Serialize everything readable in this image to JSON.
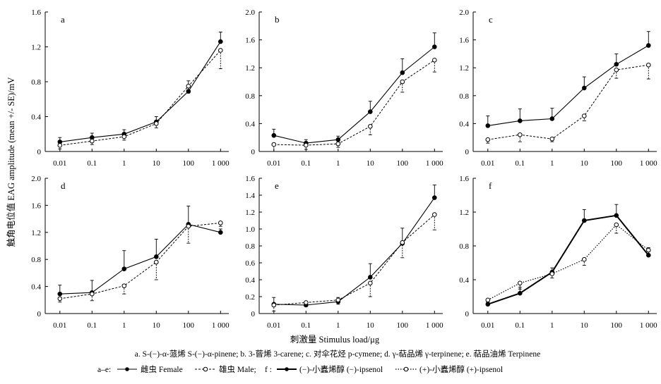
{
  "figure": {
    "ylabel": "触角电位值 EAG amplitude (mean +/- SE)/mV",
    "xlabel": "刺激量 Stimulus load/μg",
    "caption_line1": "a. S-(−)-α-蒎烯 S-(−)-α-pinene; b. 3-蒈烯 3-carene; c. 对伞花烃 p-cymene; d. γ-萜品烯 γ-terpinene; e. 萜品油烯 Terpinene",
    "legend": {
      "ae_prefix": "a–e:",
      "female": "雌虫 Female",
      "male": "雄虫 Male;",
      "f_prefix": "f :",
      "minus_ipsenol": "(−)-小蠹烯醇 (−)-ipsenol",
      "plus_ipsenol": "(+)-小蠹烯醇 (+)-ipsenol"
    }
  },
  "chart_data": [
    {
      "type": "line",
      "panel": "a",
      "categories": [
        "0.01",
        "0.1",
        "1",
        "10",
        "100",
        "1 000"
      ],
      "ylim": [
        0,
        1.6
      ],
      "yticks": [
        "0",
        "0.4",
        "0.8",
        "1.2",
        "1.6"
      ],
      "series": [
        {
          "name": "雌虫 Female",
          "style": "solid",
          "values": [
            0.11,
            0.16,
            0.2,
            0.34,
            0.69,
            1.26
          ],
          "errors": [
            0.05,
            0.05,
            0.05,
            0.06,
            0.12,
            0.11
          ]
        },
        {
          "name": "雄虫 Male",
          "style": "dashed",
          "values": [
            0.07,
            0.12,
            0.17,
            0.32,
            0.75,
            1.16
          ],
          "errors": [
            0.04,
            0.04,
            0.04,
            0.05,
            0.08,
            0.21
          ]
        }
      ]
    },
    {
      "type": "line",
      "panel": "b",
      "categories": [
        "0.01",
        "0.1",
        "1",
        "10",
        "100",
        "1 000"
      ],
      "ylim": [
        0,
        2.0
      ],
      "yticks": [
        "0",
        "0.4",
        "0.8",
        "1.2",
        "1.6",
        "2.0"
      ],
      "series": [
        {
          "name": "雌虫 Female",
          "style": "solid",
          "values": [
            0.23,
            0.12,
            0.17,
            0.57,
            1.13,
            1.5
          ],
          "errors": [
            0.09,
            0.05,
            0.05,
            0.15,
            0.2,
            0.2
          ]
        },
        {
          "name": "雄虫 Male",
          "style": "dashed",
          "values": [
            0.1,
            0.09,
            0.11,
            0.36,
            1.0,
            1.31
          ],
          "errors": [
            0.1,
            0.06,
            0.05,
            0.12,
            0.15,
            0.17
          ]
        }
      ]
    },
    {
      "type": "line",
      "panel": "c",
      "categories": [
        "0.01",
        "0.1",
        "1",
        "10",
        "100",
        "1 000"
      ],
      "ylim": [
        0,
        2.0
      ],
      "yticks": [
        "0",
        "0.4",
        "0.8",
        "1.2",
        "1.6",
        "2.0"
      ],
      "series": [
        {
          "name": "雌虫 Female",
          "style": "solid",
          "values": [
            0.37,
            0.44,
            0.47,
            0.91,
            1.25,
            1.52
          ],
          "errors": [
            0.14,
            0.17,
            0.15,
            0.16,
            0.15,
            0.2
          ]
        },
        {
          "name": "雄虫 Male",
          "style": "dashed",
          "values": [
            0.17,
            0.24,
            0.18,
            0.51,
            1.17,
            1.24
          ],
          "errors": [
            0.05,
            0.1,
            0.04,
            0.07,
            0.12,
            0.2
          ]
        }
      ]
    },
    {
      "type": "line",
      "panel": "d",
      "categories": [
        "0.01",
        "0.1",
        "1",
        "10",
        "100",
        "1 000"
      ],
      "ylim": [
        0,
        2.0
      ],
      "yticks": [
        "0",
        "0.4",
        "0.8",
        "1.2",
        "1.6",
        "2.0"
      ],
      "series": [
        {
          "name": "雌虫 Female",
          "style": "solid",
          "values": [
            0.29,
            0.31,
            0.66,
            0.84,
            1.32,
            1.2
          ],
          "errors": [
            0.13,
            0.18,
            0.27,
            0.26,
            0.27,
            0.05
          ]
        },
        {
          "name": "雄虫 Male",
          "style": "dashed",
          "values": [
            0.22,
            0.29,
            0.41,
            0.76,
            1.29,
            1.34
          ],
          "errors": [
            0.05,
            0.1,
            0.12,
            0.26,
            0.25,
            0.05
          ]
        }
      ]
    },
    {
      "type": "line",
      "panel": "e",
      "categories": [
        "0.01",
        "0.1",
        "1",
        "10",
        "100",
        "1 000"
      ],
      "ylim": [
        0,
        1.6
      ],
      "yticks": [
        "0",
        "0.2",
        "0.4",
        "0.6",
        "0.8",
        "1.0",
        "1.2",
        "1.4",
        "1.6"
      ],
      "series": [
        {
          "name": "雌虫 Female",
          "style": "solid",
          "values": [
            0.11,
            0.1,
            0.14,
            0.43,
            0.83,
            1.37
          ],
          "errors": [
            0.08,
            0.04,
            0.05,
            0.16,
            0.18,
            0.15
          ]
        },
        {
          "name": "雄虫 Male",
          "style": "dashed",
          "values": [
            0.1,
            0.13,
            0.16,
            0.36,
            0.84,
            1.17
          ],
          "errors": [
            0.07,
            0.04,
            0.05,
            0.16,
            0.18,
            0.18
          ]
        }
      ]
    },
    {
      "type": "line",
      "panel": "f",
      "categories": [
        "0.01",
        "0.1",
        "1",
        "10",
        "100",
        "1 000"
      ],
      "ylim": [
        0,
        1.6
      ],
      "yticks": [
        "0",
        "0.4",
        "0.8",
        "1.2",
        "1.6"
      ],
      "series": [
        {
          "name": "(−)-小蠹烯醇 (−)-ipsenol",
          "style": "bold",
          "values": [
            0.11,
            0.24,
            0.49,
            1.1,
            1.16,
            0.69
          ],
          "errors": [
            0.03,
            0.07,
            0.05,
            0.13,
            0.13,
            0.09
          ]
        },
        {
          "name": "(+)-小蠹烯醇 (+)-ipsenol",
          "style": "dotted",
          "values": [
            0.16,
            0.36,
            0.47,
            0.64,
            1.05,
            0.75
          ],
          "errors": [
            0.03,
            0.07,
            0.05,
            0.07,
            0.1,
            0.07
          ]
        }
      ]
    }
  ]
}
